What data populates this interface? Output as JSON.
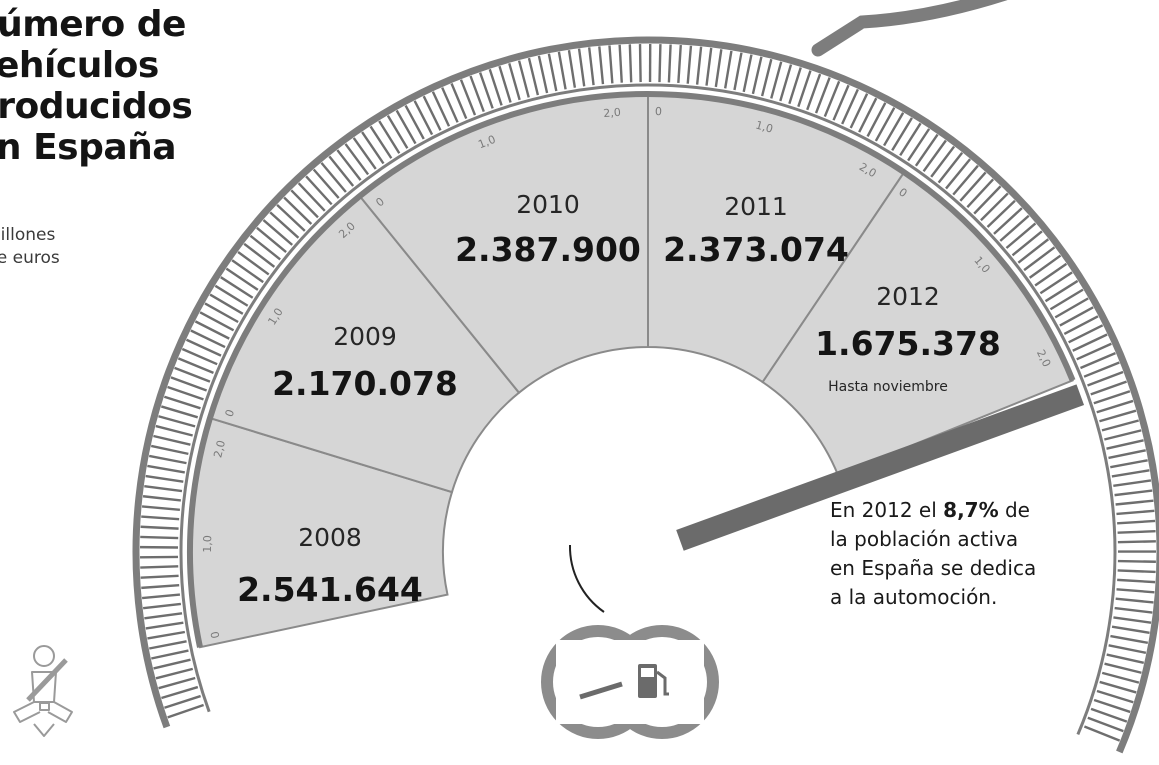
{
  "title": "número de\nvehículos\nproducidos\nen España",
  "subtitle": "Millones\nde euros",
  "colors": {
    "segment_fill": "#d6d6d6",
    "divider": "#8a8a8a",
    "outer_ring": "#7d7d7d",
    "tick": "#6e6e6e",
    "needle": "#6b6b6b",
    "icon": "#8c8c8c",
    "text": "#141414"
  },
  "icons": {
    "seatbelt": "seatbelt-icon",
    "fuel": "fuel-gauge-icon"
  },
  "chart_data": {
    "type": "gauge",
    "categories": [
      "2008",
      "2009",
      "2010",
      "2011",
      "2012"
    ],
    "values": [
      2541644,
      2170078,
      2387900,
      2373074,
      1675378
    ],
    "value_labels": [
      "2.541.644",
      "2.170.078",
      "2.387.900",
      "2.373.074",
      "1.675.378"
    ],
    "segment_notes": [
      "",
      "",
      "",
      "",
      "Hasta noviembre"
    ],
    "scale_tick_labels": [
      "0",
      "1,0",
      "2,0"
    ],
    "needle_segment": "2012"
  },
  "note": {
    "prefix": "En 2012 el ",
    "highlight": "8,7%",
    "suffix": " de la población activa en España se dedica a la automoción."
  }
}
